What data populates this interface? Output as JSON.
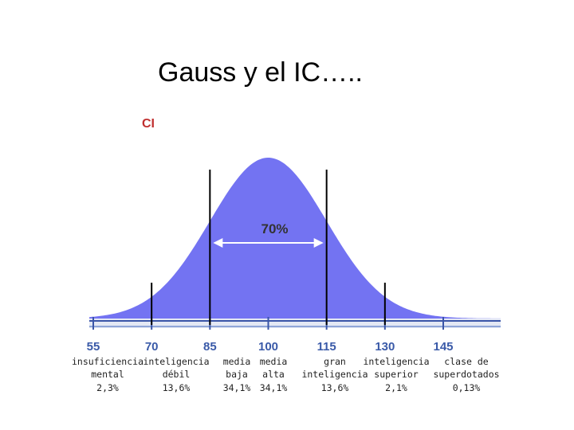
{
  "slide": {
    "title": "Gauss y el IC….."
  },
  "chart": {
    "label": "CI",
    "annotation": "70%",
    "xticks": [
      55,
      70,
      85,
      100,
      115,
      130,
      145
    ],
    "bands": [
      {
        "lines": [
          "insuficiencia",
          "mental"
        ],
        "share": "2,3%"
      },
      {
        "lines": [
          "inteligencia",
          "débil"
        ],
        "share": "13,6%"
      },
      {
        "lines": [
          "media",
          "baja"
        ],
        "share": "34,1%"
      },
      {
        "lines": [
          "media",
          "alta"
        ],
        "share": "34,1%"
      },
      {
        "lines": [
          "gran",
          "inteligencia"
        ],
        "share": "13,6%"
      },
      {
        "lines": [
          "inteligencia",
          "superior"
        ],
        "share": "2,1%"
      },
      {
        "lines": [
          "clase de",
          "superdotados"
        ],
        "share": "0,13%"
      }
    ]
  }
}
